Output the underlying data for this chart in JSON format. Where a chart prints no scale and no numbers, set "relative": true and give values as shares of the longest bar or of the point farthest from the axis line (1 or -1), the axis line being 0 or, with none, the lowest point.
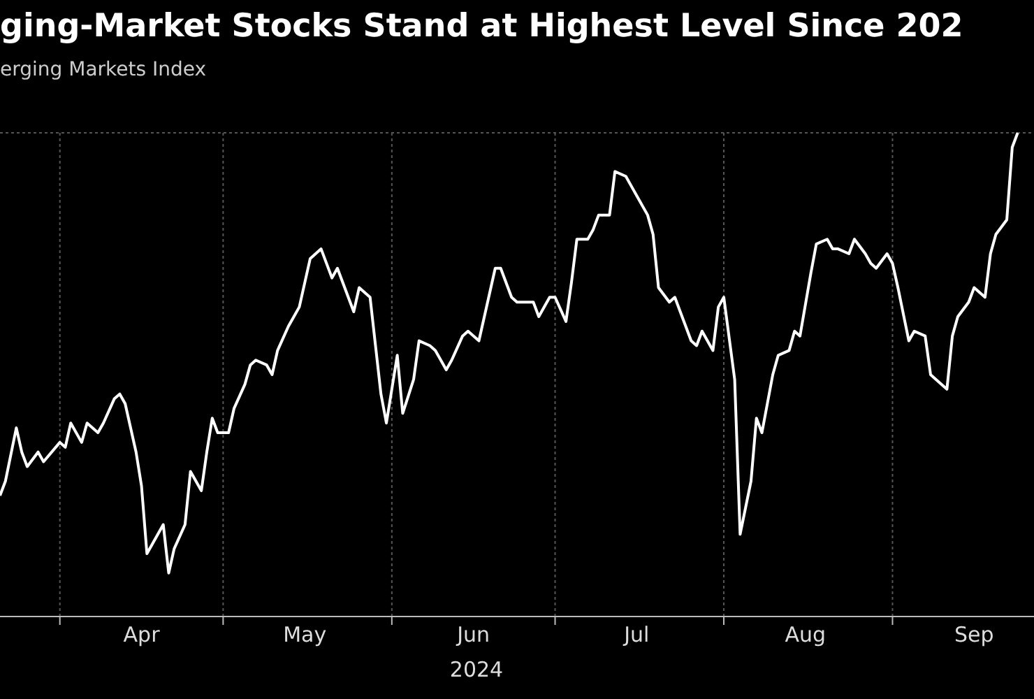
{
  "chart_data": {
    "type": "line",
    "title": "ging-Market Stocks Stand at Highest Level Since 202",
    "subtitle": "erging Markets Index",
    "xlabel": "2024",
    "relative": true,
    "grid": true,
    "marker": "none",
    "line_style": "solid",
    "xlim": [
      "2024-03-21",
      "2024-09-27"
    ],
    "xticks": [
      {
        "value": "2024-04-01",
        "label": null
      },
      {
        "value": "2024-04-16",
        "label": "Apr"
      },
      {
        "value": "2024-05-01",
        "label": null
      },
      {
        "value": "2024-05-16",
        "label": "May"
      },
      {
        "value": "2024-06-01",
        "label": null
      },
      {
        "value": "2024-06-16",
        "label": "Jun"
      },
      {
        "value": "2024-07-01",
        "label": null
      },
      {
        "value": "2024-07-16",
        "label": "Jul"
      },
      {
        "value": "2024-08-01",
        "label": null
      },
      {
        "value": "2024-08-16",
        "label": "Aug"
      },
      {
        "value": "2024-09-01",
        "label": null
      },
      {
        "value": "2024-09-16",
        "label": "Sep"
      }
    ],
    "x": [
      "2024-03-21",
      "2024-03-22",
      "2024-03-24",
      "2024-03-25",
      "2024-03-26",
      "2024-03-28",
      "2024-03-29",
      "2024-04-01",
      "2024-04-02",
      "2024-04-03",
      "2024-04-05",
      "2024-04-06",
      "2024-04-08",
      "2024-04-09",
      "2024-04-11",
      "2024-04-12",
      "2024-04-13",
      "2024-04-15",
      "2024-04-16",
      "2024-04-17",
      "2024-04-18",
      "2024-04-20",
      "2024-04-21",
      "2024-04-22",
      "2024-04-24",
      "2024-04-25",
      "2024-04-27",
      "2024-04-28",
      "2024-04-29",
      "2024-04-30",
      "2024-05-02",
      "2024-05-03",
      "2024-05-05",
      "2024-05-06",
      "2024-05-07",
      "2024-05-09",
      "2024-05-10",
      "2024-05-11",
      "2024-05-13",
      "2024-05-14",
      "2024-05-15",
      "2024-05-17",
      "2024-05-18",
      "2024-05-19",
      "2024-05-21",
      "2024-05-22",
      "2024-05-23",
      "2024-05-25",
      "2024-05-26",
      "2024-05-28",
      "2024-05-29",
      "2024-05-30",
      "2024-05-31",
      "2024-06-02",
      "2024-06-03",
      "2024-06-05",
      "2024-06-06",
      "2024-06-08",
      "2024-06-09",
      "2024-06-11",
      "2024-06-12",
      "2024-06-14",
      "2024-06-15",
      "2024-06-17",
      "2024-06-18",
      "2024-06-20",
      "2024-06-21",
      "2024-06-23",
      "2024-06-24",
      "2024-06-26",
      "2024-06-27",
      "2024-06-28",
      "2024-06-30",
      "2024-07-01",
      "2024-07-03",
      "2024-07-04",
      "2024-07-05",
      "2024-07-07",
      "2024-07-08",
      "2024-07-09",
      "2024-07-11",
      "2024-07-12",
      "2024-07-14",
      "2024-07-15",
      "2024-07-16",
      "2024-07-18",
      "2024-07-19",
      "2024-07-20",
      "2024-07-22",
      "2024-07-23",
      "2024-07-24",
      "2024-07-26",
      "2024-07-27",
      "2024-07-28",
      "2024-07-30",
      "2024-07-31",
      "2024-08-01",
      "2024-08-03",
      "2024-08-04",
      "2024-08-06",
      "2024-08-07",
      "2024-08-08",
      "2024-08-10",
      "2024-08-11",
      "2024-08-13",
      "2024-08-14",
      "2024-08-15",
      "2024-08-17",
      "2024-08-18",
      "2024-08-20",
      "2024-08-21",
      "2024-08-22",
      "2024-08-24",
      "2024-08-25",
      "2024-08-27",
      "2024-08-28",
      "2024-08-29",
      "2024-08-31",
      "2024-09-01",
      "2024-09-02",
      "2024-09-04",
      "2024-09-05",
      "2024-09-07",
      "2024-09-08",
      "2024-09-09",
      "2024-09-11",
      "2024-09-12",
      "2024-09-13",
      "2024-09-15",
      "2024-09-16",
      "2024-09-18",
      "2024-09-19",
      "2024-09-20",
      "2024-09-22",
      "2024-09-23",
      "2024-09-24"
    ],
    "series": [
      {
        "color": "#ffffff",
        "values": [
          0.25,
          0.28,
          0.39,
          0.34,
          0.31,
          0.34,
          0.32,
          0.36,
          0.35,
          0.4,
          0.36,
          0.4,
          0.38,
          0.4,
          0.45,
          0.46,
          0.44,
          0.34,
          0.27,
          0.13,
          0.15,
          0.19,
          0.09,
          0.14,
          0.19,
          0.3,
          0.26,
          0.34,
          0.41,
          0.38,
          0.38,
          0.43,
          0.48,
          0.52,
          0.53,
          0.52,
          0.5,
          0.55,
          0.6,
          0.62,
          0.64,
          0.74,
          0.75,
          0.76,
          0.7,
          0.72,
          0.69,
          0.63,
          0.68,
          0.66,
          0.56,
          0.46,
          0.4,
          0.54,
          0.42,
          0.49,
          0.57,
          0.56,
          0.55,
          0.51,
          0.53,
          0.58,
          0.59,
          0.57,
          0.62,
          0.72,
          0.72,
          0.66,
          0.65,
          0.65,
          0.65,
          0.62,
          0.66,
          0.66,
          0.61,
          0.69,
          0.78,
          0.78,
          0.8,
          0.83,
          0.83,
          0.92,
          0.91,
          0.89,
          0.87,
          0.83,
          0.79,
          0.68,
          0.65,
          0.66,
          0.63,
          0.57,
          0.56,
          0.59,
          0.55,
          0.64,
          0.66,
          0.49,
          0.17,
          0.28,
          0.41,
          0.38,
          0.5,
          0.54,
          0.55,
          0.59,
          0.58,
          0.71,
          0.77,
          0.78,
          0.76,
          0.76,
          0.75,
          0.78,
          0.75,
          0.73,
          0.72,
          0.75,
          0.73,
          0.68,
          0.57,
          0.59,
          0.58,
          0.5,
          0.49,
          0.47,
          0.58,
          0.62,
          0.65,
          0.68,
          0.66,
          0.75,
          0.79,
          0.82,
          0.97,
          1
        ]
      }
    ]
  }
}
